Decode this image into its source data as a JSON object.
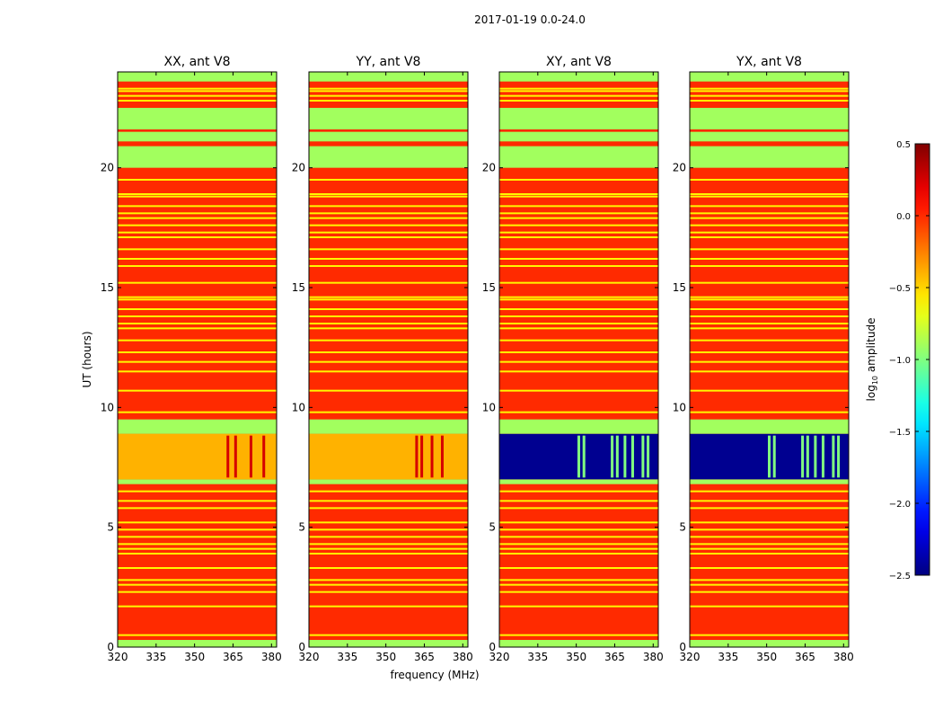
{
  "figure": {
    "suptitle": "2017-01-19 0.0-24.0",
    "xlabel": "frequency (MHz)",
    "ylabel": "UT (hours)",
    "colorbar": {
      "label": "log10 amplitude",
      "label_base": "log",
      "label_sub": "10",
      "label_rest": " amplitude",
      "min": -2.5,
      "max": 0.5,
      "ticks": [
        "0.5",
        "0.0",
        "−0.5",
        "−1.0",
        "−1.5",
        "−2.0",
        "−2.5"
      ],
      "colormap": "jet"
    }
  },
  "chart_data": [
    {
      "type": "heatmap",
      "title": "XX, ant V8",
      "polarization": "XX",
      "antenna": "V8",
      "xlim": [
        320,
        382
      ],
      "ylim": [
        0,
        24
      ],
      "xticks": [
        "320",
        "335",
        "350",
        "365",
        "380"
      ],
      "yticks": [
        "0",
        "5",
        "10",
        "15",
        "20"
      ],
      "base_level": 0.0,
      "bands": [
        {
          "y0": 0.0,
          "y1": 0.3,
          "level": -0.9
        },
        {
          "y0": 6.8,
          "y1": 7.0,
          "level": -0.9
        },
        {
          "y0": 7.0,
          "y1": 8.9,
          "level": -0.4,
          "hot_freqs": [
            363,
            366,
            372,
            377
          ]
        },
        {
          "y0": 8.9,
          "y1": 9.5,
          "level": -0.9
        },
        {
          "y0": 20.0,
          "y1": 20.9,
          "level": -0.9
        },
        {
          "y0": 21.1,
          "y1": 21.5,
          "level": -0.9
        },
        {
          "y0": 21.6,
          "y1": 22.5,
          "level": -0.9
        },
        {
          "y0": 23.6,
          "y1": 24.0,
          "level": -0.9
        }
      ],
      "lines": [
        0.5,
        1.7,
        2.3,
        2.6,
        2.8,
        3.3,
        3.9,
        4.1,
        4.3,
        4.6,
        4.9,
        5.2,
        5.8,
        6.1,
        6.5,
        9.8,
        10.7,
        11.5,
        11.9,
        12.3,
        12.8,
        13.3,
        13.5,
        13.8,
        14.1,
        14.5,
        14.6,
        15.2,
        15.9,
        16.2,
        16.6,
        17.1,
        17.3,
        17.6,
        17.9,
        18.1,
        18.4,
        18.8,
        18.9,
        19.5,
        22.8,
        23.0,
        23.2,
        23.3
      ]
    },
    {
      "type": "heatmap",
      "title": "YY, ant V8",
      "polarization": "YY",
      "antenna": "V8",
      "xlim": [
        320,
        382
      ],
      "ylim": [
        0,
        24
      ],
      "xticks": [
        "320",
        "335",
        "350",
        "365",
        "380"
      ],
      "yticks": [
        "0",
        "5",
        "10",
        "15",
        "20"
      ],
      "base_level": 0.0,
      "bands": [
        {
          "y0": 0.0,
          "y1": 0.3,
          "level": -0.9
        },
        {
          "y0": 6.8,
          "y1": 7.0,
          "level": -0.9
        },
        {
          "y0": 7.0,
          "y1": 8.9,
          "level": -0.4,
          "hot_freqs": [
            362,
            364,
            368,
            372
          ]
        },
        {
          "y0": 8.9,
          "y1": 9.5,
          "level": -0.9
        },
        {
          "y0": 20.0,
          "y1": 20.9,
          "level": -0.9
        },
        {
          "y0": 21.1,
          "y1": 21.5,
          "level": -0.9
        },
        {
          "y0": 21.6,
          "y1": 22.5,
          "level": -0.9
        },
        {
          "y0": 23.6,
          "y1": 24.0,
          "level": -0.9
        }
      ],
      "lines": [
        0.5,
        1.7,
        2.3,
        2.6,
        2.8,
        3.3,
        3.9,
        4.1,
        4.3,
        4.6,
        4.9,
        5.2,
        5.8,
        6.1,
        6.5,
        9.8,
        10.7,
        11.5,
        11.9,
        12.3,
        12.8,
        13.3,
        13.5,
        13.8,
        14.1,
        14.5,
        14.6,
        15.2,
        15.9,
        16.2,
        16.6,
        17.1,
        17.3,
        17.6,
        17.9,
        18.1,
        18.4,
        18.8,
        18.9,
        19.5,
        22.8,
        23.0,
        23.2,
        23.3
      ]
    },
    {
      "type": "heatmap",
      "title": "XY, ant V8",
      "polarization": "XY",
      "antenna": "V8",
      "xlim": [
        320,
        382
      ],
      "ylim": [
        0,
        24
      ],
      "xticks": [
        "320",
        "335",
        "350",
        "365",
        "380"
      ],
      "yticks": [
        "0",
        "5",
        "10",
        "15",
        "20"
      ],
      "base_level": 0.0,
      "bands": [
        {
          "y0": 0.0,
          "y1": 0.3,
          "level": -0.9
        },
        {
          "y0": 6.8,
          "y1": 7.0,
          "level": -0.9
        },
        {
          "y0": 7.0,
          "y1": 8.9,
          "level": -2.45,
          "hot_freqs": [
            351,
            353,
            364,
            366,
            369,
            372,
            376,
            378
          ]
        },
        {
          "y0": 8.9,
          "y1": 9.5,
          "level": -0.9
        },
        {
          "y0": 20.0,
          "y1": 20.9,
          "level": -0.9
        },
        {
          "y0": 21.1,
          "y1": 21.5,
          "level": -0.9
        },
        {
          "y0": 21.6,
          "y1": 22.5,
          "level": -0.9
        },
        {
          "y0": 23.6,
          "y1": 24.0,
          "level": -0.9
        }
      ],
      "lines": [
        0.5,
        1.7,
        2.3,
        2.6,
        2.8,
        3.3,
        3.9,
        4.1,
        4.3,
        4.6,
        4.9,
        5.2,
        5.8,
        6.1,
        6.5,
        9.8,
        10.7,
        11.5,
        11.9,
        12.3,
        12.8,
        13.3,
        13.5,
        13.8,
        14.1,
        14.5,
        14.6,
        15.2,
        15.9,
        16.2,
        16.6,
        17.1,
        17.3,
        17.6,
        17.9,
        18.1,
        18.4,
        18.8,
        18.9,
        19.5,
        22.8,
        23.0,
        23.2,
        23.3
      ]
    },
    {
      "type": "heatmap",
      "title": "YX, ant V8",
      "polarization": "YX",
      "antenna": "V8",
      "xlim": [
        320,
        382
      ],
      "ylim": [
        0,
        24
      ],
      "xticks": [
        "320",
        "335",
        "350",
        "365",
        "380"
      ],
      "yticks": [
        "0",
        "5",
        "10",
        "15",
        "20"
      ],
      "base_level": 0.0,
      "bands": [
        {
          "y0": 0.0,
          "y1": 0.3,
          "level": -0.9
        },
        {
          "y0": 6.8,
          "y1": 7.0,
          "level": -0.9
        },
        {
          "y0": 7.0,
          "y1": 8.9,
          "level": -2.45,
          "hot_freqs": [
            351,
            353,
            364,
            366,
            369,
            372,
            376,
            378
          ]
        },
        {
          "y0": 8.9,
          "y1": 9.5,
          "level": -0.9
        },
        {
          "y0": 20.0,
          "y1": 20.9,
          "level": -0.9
        },
        {
          "y0": 21.1,
          "y1": 21.5,
          "level": -0.9
        },
        {
          "y0": 21.6,
          "y1": 22.5,
          "level": -0.9
        },
        {
          "y0": 23.6,
          "y1": 24.0,
          "level": -0.9
        }
      ],
      "lines": [
        0.5,
        1.7,
        2.3,
        2.6,
        2.8,
        3.3,
        3.9,
        4.1,
        4.3,
        4.6,
        4.9,
        5.2,
        5.8,
        6.1,
        6.5,
        9.8,
        10.7,
        11.5,
        11.9,
        12.3,
        12.8,
        13.3,
        13.5,
        13.8,
        14.1,
        14.5,
        14.6,
        15.2,
        15.9,
        16.2,
        16.6,
        17.1,
        17.3,
        17.6,
        17.9,
        18.1,
        18.4,
        18.8,
        18.9,
        19.5,
        22.8,
        23.0,
        23.2,
        23.3
      ]
    }
  ]
}
